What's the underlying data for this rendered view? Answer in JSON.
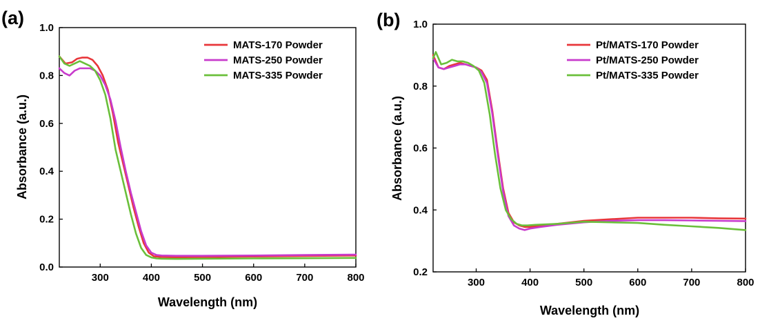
{
  "chart_data": [
    {
      "type": "line",
      "panel_label": "(a)",
      "xlabel": "Wavelength (nm)",
      "ylabel": "Absorbance (a.u.)",
      "xlim": [
        220,
        800
      ],
      "ylim": [
        0.0,
        1.0
      ],
      "xticks": [
        300,
        400,
        500,
        600,
        700,
        800
      ],
      "yticks": [
        0.0,
        0.2,
        0.4,
        0.6,
        0.8,
        1.0
      ],
      "ytick_labels": [
        "0.0",
        "0.2",
        "0.4",
        "0.6",
        "0.8",
        "1.0"
      ],
      "grid": false,
      "legend_position": "top-right",
      "series": [
        {
          "name": "MATS-170 Powder",
          "color": "#e8363a",
          "x": [
            220,
            232,
            245,
            255,
            265,
            275,
            285,
            295,
            305,
            315,
            325,
            335,
            345,
            355,
            365,
            375,
            385,
            395,
            405,
            420,
            450,
            500,
            600,
            700,
            800
          ],
          "y": [
            0.88,
            0.85,
            0.855,
            0.87,
            0.875,
            0.875,
            0.865,
            0.84,
            0.8,
            0.74,
            0.64,
            0.52,
            0.43,
            0.34,
            0.25,
            0.17,
            0.1,
            0.06,
            0.045,
            0.042,
            0.041,
            0.042,
            0.044,
            0.046,
            0.048
          ]
        },
        {
          "name": "MATS-250 Powder",
          "color": "#c83acc",
          "x": [
            220,
            230,
            240,
            250,
            260,
            270,
            280,
            290,
            300,
            310,
            320,
            330,
            340,
            350,
            360,
            370,
            380,
            390,
            400,
            410,
            420,
            450,
            500,
            600,
            700,
            800
          ],
          "y": [
            0.83,
            0.81,
            0.8,
            0.82,
            0.83,
            0.83,
            0.83,
            0.82,
            0.8,
            0.76,
            0.7,
            0.61,
            0.5,
            0.4,
            0.31,
            0.23,
            0.15,
            0.09,
            0.06,
            0.05,
            0.048,
            0.047,
            0.047,
            0.048,
            0.05,
            0.052
          ]
        },
        {
          "name": "MATS-335 Powder",
          "color": "#6abf3a",
          "x": [
            220,
            230,
            240,
            250,
            260,
            270,
            280,
            290,
            300,
            310,
            320,
            330,
            340,
            350,
            360,
            370,
            380,
            390,
            400,
            410,
            420,
            450,
            500,
            600,
            700,
            800
          ],
          "y": [
            0.88,
            0.85,
            0.84,
            0.85,
            0.86,
            0.85,
            0.84,
            0.82,
            0.78,
            0.72,
            0.62,
            0.49,
            0.4,
            0.31,
            0.22,
            0.14,
            0.08,
            0.05,
            0.04,
            0.036,
            0.035,
            0.034,
            0.035,
            0.036,
            0.037,
            0.038
          ]
        }
      ]
    },
    {
      "type": "line",
      "panel_label": "(b)",
      "xlabel": "Wavelength (nm)",
      "ylabel": "Absorbance (a.u.)",
      "xlim": [
        220,
        800
      ],
      "ylim": [
        0.2,
        1.0
      ],
      "xticks": [
        300,
        400,
        500,
        600,
        700,
        800
      ],
      "yticks": [
        0.2,
        0.4,
        0.6,
        0.8,
        1.0
      ],
      "ytick_labels": [
        "0.2",
        "0.4",
        "0.6",
        "0.8",
        "1.0"
      ],
      "grid": false,
      "legend_position": "top-right",
      "series": [
        {
          "name": "Pt/MATS-170 Powder",
          "color": "#e8363a",
          "x": [
            220,
            230,
            240,
            250,
            260,
            270,
            280,
            290,
            300,
            310,
            320,
            330,
            340,
            350,
            360,
            370,
            380,
            390,
            400,
            420,
            450,
            500,
            550,
            600,
            650,
            700,
            750,
            800
          ],
          "y": [
            0.9,
            0.86,
            0.855,
            0.865,
            0.87,
            0.875,
            0.87,
            0.865,
            0.86,
            0.85,
            0.82,
            0.72,
            0.59,
            0.47,
            0.39,
            0.36,
            0.35,
            0.345,
            0.345,
            0.35,
            0.355,
            0.365,
            0.37,
            0.375,
            0.375,
            0.375,
            0.373,
            0.372
          ]
        },
        {
          "name": "Pt/MATS-250 Powder",
          "color": "#c83acc",
          "x": [
            220,
            230,
            240,
            250,
            260,
            270,
            280,
            290,
            300,
            310,
            320,
            330,
            340,
            350,
            360,
            370,
            380,
            390,
            400,
            420,
            450,
            500,
            550,
            600,
            650,
            700,
            750,
            800
          ],
          "y": [
            0.89,
            0.86,
            0.855,
            0.86,
            0.865,
            0.87,
            0.87,
            0.865,
            0.86,
            0.845,
            0.81,
            0.71,
            0.58,
            0.46,
            0.38,
            0.35,
            0.34,
            0.335,
            0.34,
            0.345,
            0.352,
            0.36,
            0.365,
            0.367,
            0.367,
            0.366,
            0.365,
            0.364
          ]
        },
        {
          "name": "Pt/MATS-335 Powder",
          "color": "#6abf3a",
          "x": [
            220,
            225,
            235,
            245,
            255,
            265,
            275,
            285,
            295,
            305,
            315,
            325,
            335,
            345,
            355,
            365,
            375,
            385,
            395,
            410,
            450,
            500,
            550,
            600,
            650,
            700,
            750,
            800
          ],
          "y": [
            0.89,
            0.91,
            0.87,
            0.875,
            0.885,
            0.88,
            0.88,
            0.875,
            0.865,
            0.85,
            0.81,
            0.71,
            0.58,
            0.47,
            0.4,
            0.37,
            0.355,
            0.35,
            0.35,
            0.352,
            0.355,
            0.362,
            0.36,
            0.358,
            0.352,
            0.347,
            0.342,
            0.335
          ]
        }
      ]
    }
  ]
}
